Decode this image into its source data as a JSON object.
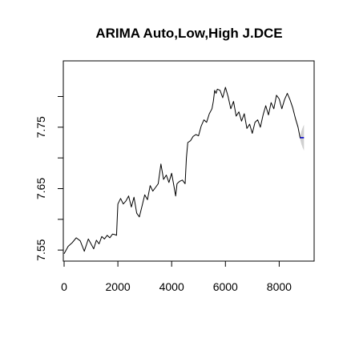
{
  "chart_data": {
    "type": "line",
    "title": "ARIMA Auto,Low,High J.DCE",
    "xlabel": "",
    "ylabel": "",
    "xlim": [
      -30,
      9300
    ],
    "ylim": [
      7.532,
      7.858
    ],
    "x_ticks": [
      0,
      2000,
      4000,
      6000,
      8000
    ],
    "x_tick_labels": [
      "0",
      "2000",
      "4000",
      "6000",
      "8000"
    ],
    "y_ticks": [
      7.55,
      7.6,
      7.65,
      7.7,
      7.75,
      7.8
    ],
    "y_tick_labels": [
      "7.55",
      "",
      "7.65",
      "",
      "7.75",
      ""
    ],
    "grid": false,
    "legend": "none",
    "series": [
      {
        "color": "#000000",
        "x": [
          0,
          150,
          300,
          450,
          600,
          750,
          900,
          1000,
          1100,
          1200,
          1300,
          1400,
          1500,
          1600,
          1700,
          1800,
          1900,
          1950,
          2000,
          2100,
          2200,
          2300,
          2400,
          2500,
          2600,
          2700,
          2800,
          2900,
          3000,
          3100,
          3200,
          3300,
          3400,
          3500,
          3600,
          3700,
          3800,
          3900,
          4000,
          4100,
          4150,
          4200,
          4300,
          4400,
          4500,
          4550,
          4600,
          4700,
          4800,
          4900,
          5000,
          5100,
          5200,
          5300,
          5400,
          5500,
          5550,
          5600,
          5650,
          5700,
          5800,
          5900,
          6000,
          6100,
          6200,
          6300,
          6400,
          6500,
          6600,
          6700,
          6800,
          6900,
          7000,
          7100,
          7200,
          7300,
          7400,
          7500,
          7600,
          7700,
          7800,
          7900,
          8000,
          8100,
          8200,
          8300,
          8400,
          8500,
          8600,
          8700,
          8780
        ],
        "values": [
          7.544,
          7.556,
          7.562,
          7.57,
          7.565,
          7.548,
          7.568,
          7.56,
          7.552,
          7.566,
          7.56,
          7.572,
          7.568,
          7.574,
          7.57,
          7.576,
          7.575,
          7.574,
          7.625,
          7.634,
          7.625,
          7.63,
          7.638,
          7.62,
          7.636,
          7.61,
          7.604,
          7.622,
          7.64,
          7.632,
          7.655,
          7.646,
          7.652,
          7.658,
          7.69,
          7.665,
          7.672,
          7.66,
          7.675,
          7.65,
          7.638,
          7.658,
          7.662,
          7.664,
          7.658,
          7.7,
          7.725,
          7.728,
          7.735,
          7.738,
          7.736,
          7.752,
          7.762,
          7.758,
          7.772,
          7.78,
          7.792,
          7.81,
          7.805,
          7.812,
          7.81,
          7.798,
          7.815,
          7.8,
          7.78,
          7.792,
          7.768,
          7.775,
          7.76,
          7.772,
          7.748,
          7.755,
          7.74,
          7.758,
          7.762,
          7.75,
          7.77,
          7.785,
          7.77,
          7.79,
          7.78,
          7.802,
          7.796,
          7.78,
          7.795,
          7.805,
          7.795,
          7.782,
          7.765,
          7.75,
          7.732
        ]
      },
      {
        "color": "#0000cd",
        "x": [
          8780,
          8800,
          8860,
          8920
        ],
        "values": [
          7.733,
          7.733,
          7.733,
          7.733
        ]
      }
    ],
    "interval": {
      "color": "#d0d0d0",
      "x": [
        8780,
        8830,
        8880,
        8920
      ],
      "lower": [
        7.73,
        7.722,
        7.716,
        7.712
      ],
      "upper": [
        7.736,
        7.744,
        7.75,
        7.754
      ]
    }
  }
}
